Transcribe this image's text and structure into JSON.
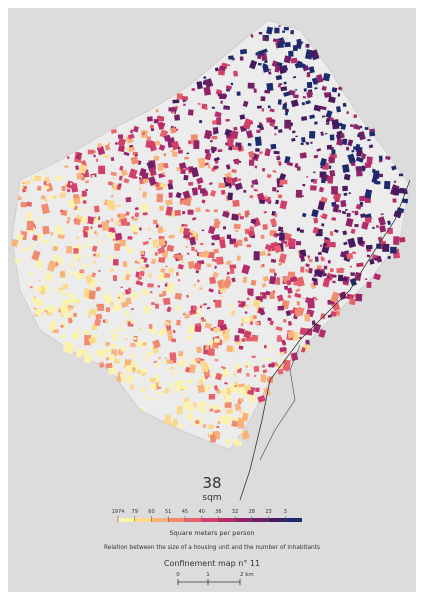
{
  "map": {
    "value": "38",
    "unit": "sqm",
    "legend": {
      "title": "Square meters per person",
      "subtitle": "Relation between the size of a housing unit and the number of inhabitants",
      "items": [
        {
          "label": "1974",
          "color": "#fbf3ad"
        },
        {
          "label": "79",
          "color": "#fbd88c"
        },
        {
          "label": "60",
          "color": "#f8b27c"
        },
        {
          "label": "51",
          "color": "#f18b6f"
        },
        {
          "label": "45",
          "color": "#e6636b"
        },
        {
          "label": "40",
          "color": "#d13f6a"
        },
        {
          "label": "36",
          "color": "#b42d6b"
        },
        {
          "label": "32",
          "color": "#902468"
        },
        {
          "label": "28",
          "color": "#6c1f66"
        },
        {
          "label": "23",
          "color": "#471a5e"
        },
        {
          "label": "3",
          "color": "#1d2a6c"
        }
      ]
    },
    "footer": {
      "title": "Confinement map n° 11",
      "scale": [
        "0",
        "1",
        "2 km"
      ]
    }
  }
}
